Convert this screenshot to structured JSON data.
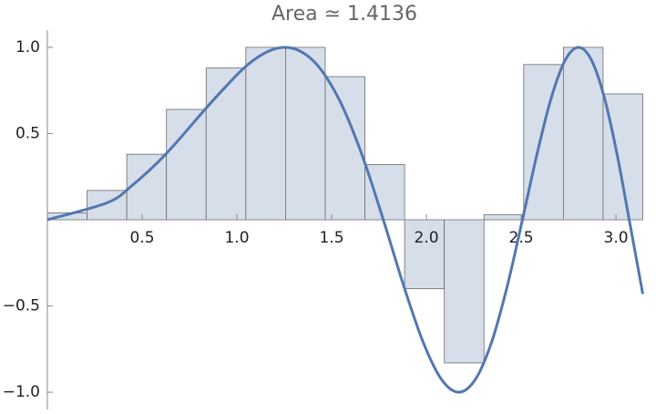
{
  "chart_data": {
    "type": "riemann",
    "title": "Area ≃ 1.4136",
    "bins": [
      0,
      0.20944,
      0.41888,
      0.62832,
      0.83776,
      1.0472,
      1.25664,
      1.46608,
      1.67552,
      1.88496,
      2.0944,
      2.30383,
      2.51327,
      2.72271,
      2.93215,
      3.14159
    ],
    "bar_values": [
      0.04,
      0.17,
      0.38,
      0.64,
      0.88,
      1.0,
      1.0,
      0.83,
      0.32,
      -0.4,
      -0.83,
      0.03,
      0.9,
      1.0,
      0.73
    ],
    "bar_color": "#d6deea",
    "bar_edge": "#6a6a6a",
    "curve": {
      "color": "#5277b0",
      "x": [
        0,
        0.3133,
        0.4431,
        0.6267,
        0.8862,
        1.0854,
        1.2533,
        1.4012,
        1.535,
        1.658,
        1.7725,
        1.88,
        1.9817,
        2.0784,
        2.1708,
        2.2594,
        2.3447,
        2.427,
        2.5066,
        2.5838,
        2.6587,
        2.7315,
        2.8025,
        2.8717,
        2.9392,
        3.0053,
        3.07,
        3.1416
      ],
      "values": [
        0,
        0.098,
        0.1951,
        0.3827,
        0.7071,
        0.9239,
        1,
        0.9239,
        0.7071,
        0.3827,
        0,
        -0.3827,
        -0.7071,
        -0.9239,
        -1,
        -0.9239,
        -0.7071,
        -0.3827,
        0,
        0.3827,
        0.7071,
        0.9239,
        1,
        0.9239,
        0.7071,
        0.3827,
        0,
        -0.4303
      ]
    },
    "xlim": [
      0,
      3.1416
    ],
    "ylim": [
      -1.1,
      1.1
    ],
    "xticks": [
      0.5,
      {
        "value": 1,
        "label": "1.0"
      },
      1.5,
      {
        "value": 2,
        "label": "2.0"
      },
      2.5,
      {
        "value": 3,
        "label": "3.0"
      }
    ],
    "yticks": [
      {
        "value": -1,
        "label": "−1.0"
      },
      {
        "value": -0.5,
        "label": "−0.5"
      },
      0.5,
      {
        "value": 1,
        "label": "1.0"
      }
    ]
  }
}
